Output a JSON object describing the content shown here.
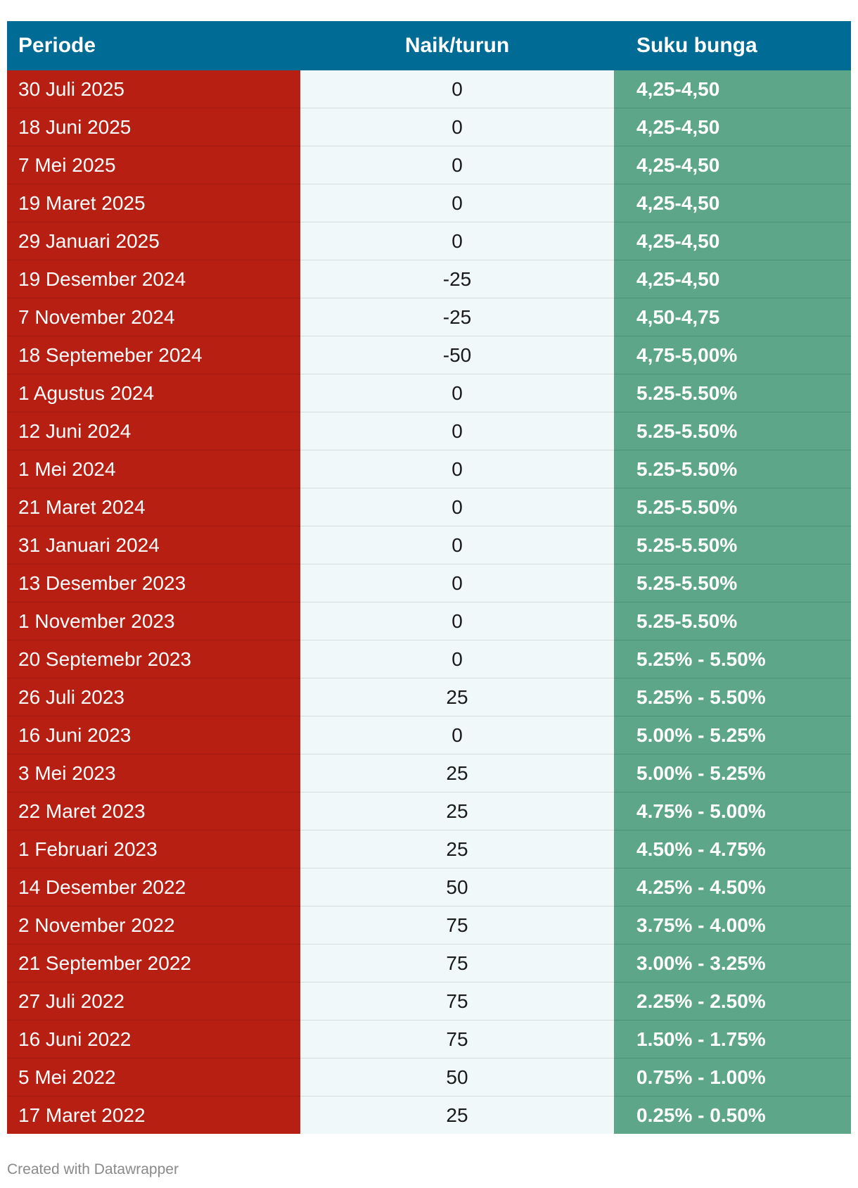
{
  "table": {
    "headers": [
      "Periode",
      "Naik/turun",
      "Suku bunga"
    ],
    "rows": [
      [
        "30 Juli 2025",
        "0",
        "4,25-4,50"
      ],
      [
        "18 Juni 2025",
        "0",
        "4,25-4,50"
      ],
      [
        "7 Mei 2025",
        "0",
        "4,25-4,50"
      ],
      [
        "19 Maret 2025",
        "0",
        "4,25-4,50"
      ],
      [
        "29 Januari 2025",
        "0",
        "4,25-4,50"
      ],
      [
        "19 Desember 2024",
        "-25",
        "4,25-4,50"
      ],
      [
        "7 November 2024",
        "-25",
        "4,50-4,75"
      ],
      [
        "18 Septemeber 2024",
        "-50",
        "4,75-5,00%"
      ],
      [
        "1 Agustus 2024",
        "0",
        "5.25-5.50%"
      ],
      [
        "12 Juni 2024",
        "0",
        "5.25-5.50%"
      ],
      [
        "1 Mei 2024",
        "0",
        "5.25-5.50%"
      ],
      [
        "21 Maret 2024",
        "0",
        "5.25-5.50%"
      ],
      [
        "31 Januari 2024",
        "0",
        "5.25-5.50%"
      ],
      [
        "13 Desember 2023",
        "0",
        "5.25-5.50%"
      ],
      [
        "1 November 2023",
        "0",
        "5.25-5.50%"
      ],
      [
        "20 Septemebr 2023",
        "0",
        "5.25% - 5.50%"
      ],
      [
        "26 Juli 2023",
        "25",
        "5.25% - 5.50%"
      ],
      [
        "16 Juni 2023",
        "0",
        "5.00% - 5.25%"
      ],
      [
        "3 Mei 2023",
        "25",
        "5.00% - 5.25%"
      ],
      [
        "22 Maret 2023",
        "25",
        "4.75% - 5.00%"
      ],
      [
        "1 Februari 2023",
        "25",
        "4.50% - 4.75%"
      ],
      [
        "14 Desember 2022",
        "50",
        "4.25% - 4.50%"
      ],
      [
        "2 November 2022",
        "75",
        "3.75% - 4.00%"
      ],
      [
        "21 September 2022",
        "75",
        "3.00% - 3.25%"
      ],
      [
        "27 Juli 2022",
        "75",
        "2.25% - 2.50%"
      ],
      [
        "16 Juni 2022",
        "75",
        "1.50% - 1.75%"
      ],
      [
        "5 Mei 2022",
        "50",
        "0.75% - 1.00%"
      ],
      [
        "17 Maret 2022",
        "25",
        "0.25% - 0.50%"
      ]
    ]
  },
  "colors": {
    "header": "#006b94",
    "periode_column": "#b71f13",
    "naik_column": "#f0f8f9",
    "suku_column": "#5ea68a"
  },
  "footer": {
    "credit": "Created with Datawrapper"
  }
}
